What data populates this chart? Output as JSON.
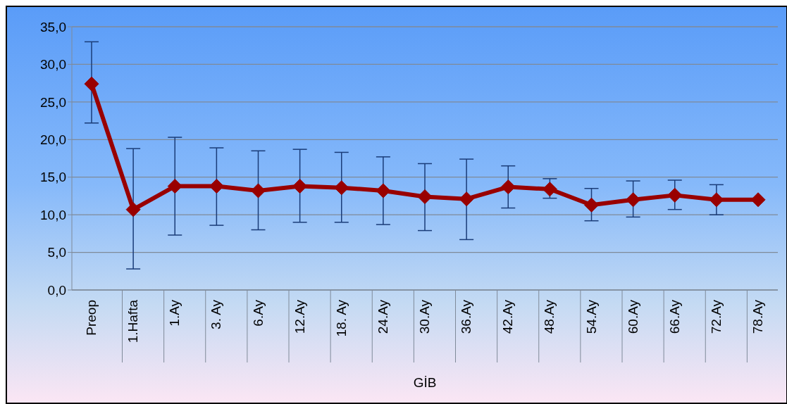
{
  "chart_data": {
    "type": "line",
    "xlabel": "GİB",
    "categories": [
      "Preop",
      "1.Hafta",
      "1.Ay",
      "3. Ay",
      "6.Ay",
      "12.Ay",
      "18. Ay",
      "24.Ay",
      "30.Ay",
      "36.Ay",
      "42.Ay",
      "48.Ay",
      "54.Ay",
      "60.Ay",
      "66.Ay",
      "72.Ay",
      "78.Ay"
    ],
    "series": [
      {
        "color": "#990000",
        "values": [
          27.4,
          10.7,
          13.8,
          13.8,
          13.2,
          13.8,
          13.6,
          13.2,
          12.4,
          12.1,
          13.7,
          13.4,
          11.3,
          12.0,
          12.6,
          12.0,
          12.0
        ],
        "errors": [
          [
            22.2,
            33.0
          ],
          [
            2.8,
            18.8
          ],
          [
            7.3,
            20.3
          ],
          [
            8.6,
            18.9
          ],
          [
            8.0,
            18.5
          ],
          [
            9.0,
            18.7
          ],
          [
            9.0,
            18.3
          ],
          [
            8.7,
            17.7
          ],
          [
            7.9,
            16.8
          ],
          [
            6.7,
            17.4
          ],
          [
            10.9,
            16.5
          ],
          [
            12.2,
            14.8
          ],
          [
            9.2,
            13.5
          ],
          [
            9.7,
            14.5
          ],
          [
            10.7,
            14.6
          ],
          [
            10.0,
            14.0
          ],
          null
        ]
      }
    ],
    "ylim": [
      0,
      35
    ],
    "yticks": [
      {
        "value": 0,
        "label": "0,0"
      },
      {
        "value": 5,
        "label": "5,0"
      },
      {
        "value": 10,
        "label": "10,0"
      },
      {
        "value": 15,
        "label": "15,0"
      },
      {
        "value": 20,
        "label": "20,0"
      },
      {
        "value": 25,
        "label": "25,0"
      },
      {
        "value": 30,
        "label": "30,0"
      },
      {
        "value": 35,
        "label": "35,0"
      }
    ],
    "grid": "y",
    "marker": "diamond",
    "line_style": "solid",
    "legend": false
  }
}
